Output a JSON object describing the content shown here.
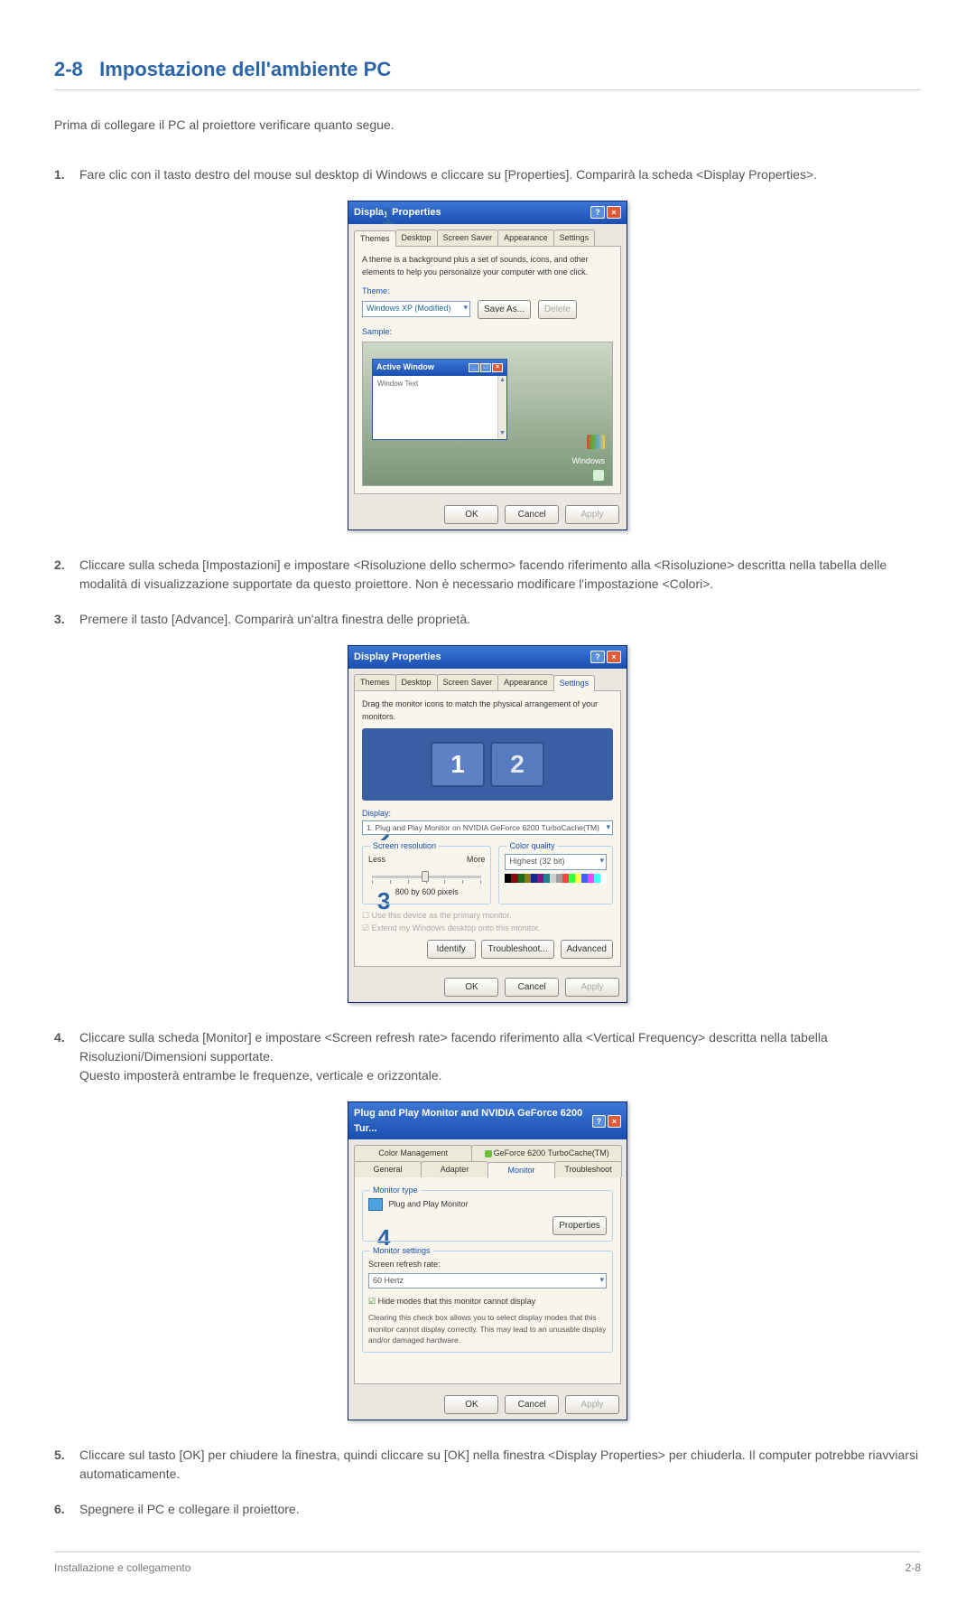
{
  "section": {
    "num": "2-8",
    "title": "Impostazione dell'ambiente PC"
  },
  "intro": "Prima di collegare il PC al proiettore verificare quanto segue.",
  "steps": {
    "s1": "Fare clic con il tasto destro del mouse sul desktop di Windows e cliccare su [Properties]. Comparirà la scheda <Display Properties>.",
    "s2": "Cliccare sulla scheda [Impostazioni] e impostare <Risoluzione dello schermo> facendo riferimento alla <Risoluzione> descritta nella tabella delle modalità di visualizzazione supportate da questo proiettore. Non è necessario modificare l'impostazione <Colori>.",
    "s3": "Premere il tasto [Advance]. Comparirà un'altra finestra delle proprietà.",
    "s4a": "Cliccare sulla scheda [Monitor] e impostare <Screen refresh rate> facendo riferimento alla <Vertical Frequency> descritta nella tabella Risoluzioni/Dimensioni supportate.",
    "s4b": "Questo imposterà entrambe le frequenze, verticale e orizzontale.",
    "s5": "Cliccare sul tasto [OK] per chiudere la finestra, quindi cliccare su [OK] nella finestra <Display Properties> per chiuderla. Il computer potrebbe riavviarsi automaticamente.",
    "s6": "Spegnere il PC e collegare il proiettore."
  },
  "callouts": {
    "c1": "1",
    "c2": "2",
    "c3": "3",
    "c4": "4"
  },
  "dlg1": {
    "title": "Display Properties",
    "tabs": [
      "Themes",
      "Desktop",
      "Screen Saver",
      "Appearance",
      "Settings"
    ],
    "desc": "A theme is a background plus a set of sounds, icons, and other elements to help you personalize your computer with one click.",
    "theme_label": "Theme:",
    "theme_value": "Windows XP (Modified)",
    "save_as": "Save As...",
    "delete": "Delete",
    "sample_label": "Sample:",
    "active_window": "Active Window",
    "window_text": "Window Text",
    "win_label": "Windows",
    "ok": "OK",
    "cancel": "Cancel",
    "apply": "Apply"
  },
  "dlg2": {
    "title": "Display Properties",
    "tabs": [
      "Themes",
      "Desktop",
      "Screen Saver",
      "Appearance",
      "Settings"
    ],
    "drag": "Drag the monitor icons to match the physical arrangement of your monitors.",
    "mon1": "1",
    "mon2": "2",
    "display_label": "Display:",
    "display_value": "1. Plug and Play Monitor on NVIDIA GeForce 6200 TurboCache(TM)",
    "res_group": "Screen resolution",
    "less": "Less",
    "more": "More",
    "res_value": "800 by 600  pixels",
    "qual_group": "Color quality",
    "qual_value": "Highest (32 bit)",
    "chk1": "Use this device as the primary monitor.",
    "chk2": "Extend my Windows desktop onto this monitor.",
    "identify": "Identify",
    "troubleshoot": "Troubleshoot...",
    "advanced": "Advanced",
    "ok": "OK",
    "cancel": "Cancel",
    "apply": "Apply",
    "colorbar": [
      "#000000",
      "#7a120f",
      "#1c6b18",
      "#8a7a18",
      "#122a8a",
      "#7a188a",
      "#128a8a",
      "#d0d0d0",
      "#a0a0a0",
      "#ff4040",
      "#40ff40",
      "#ffff40",
      "#4060ff",
      "#ff40ff",
      "#40ffff",
      "#ffffff"
    ]
  },
  "dlg3": {
    "title": "Plug and Play Monitor and NVIDIA GeForce 6200 Tur...",
    "tabs_row1": [
      "Color Management",
      "GeForce 6200 TurboCache(TM)"
    ],
    "tabs_row2": [
      "General",
      "Adapter",
      "Monitor",
      "Troubleshoot"
    ],
    "montype_group": "Monitor type",
    "montype_value": "Plug and Play Monitor",
    "properties": "Properties",
    "monset_group": "Monitor settings",
    "refresh_label": "Screen refresh rate:",
    "refresh_value": "60 Hertz",
    "hide_check": "Hide modes that this monitor cannot display",
    "warn": "Clearing this check box allows you to select display modes that this monitor cannot display correctly. This may lead to an unusable display and/or damaged hardware.",
    "ok": "OK",
    "cancel": "Cancel",
    "apply": "Apply",
    "nvidia_icon": "◥"
  },
  "footer": {
    "left": "Installazione e collegamento",
    "right": "2-8"
  }
}
